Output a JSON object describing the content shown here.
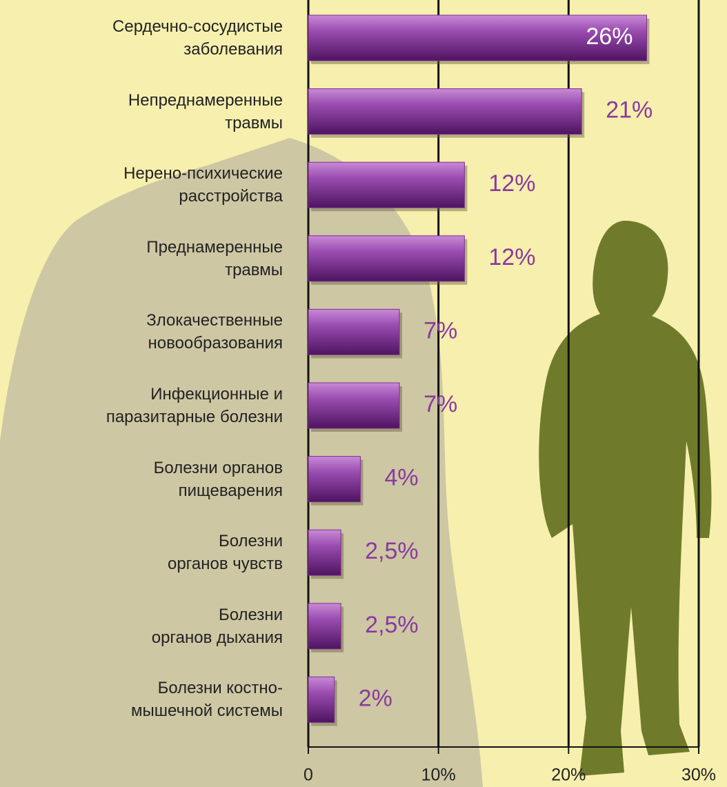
{
  "chart_data": {
    "type": "barh",
    "categories": [
      "Сердечно-сосудистые\nзаболевания",
      "Непреднамеренные\nтравмы",
      "Нерено-психические\nрасстройства",
      "Преднамеренные\nтравмы",
      "Злокачественные\nновообразования",
      "Инфекционные и\nпаразитарные болезни",
      "Болезни органов\nпищеварения",
      "Болезни\nорганов чувств",
      "Болезни\nорганов дыхания",
      "Болезни костно-\nмышечной системы"
    ],
    "values": [
      26,
      21,
      12,
      12,
      7,
      7,
      4,
      2.5,
      2.5,
      2
    ],
    "value_labels": [
      "26%",
      "21%",
      "12%",
      "12%",
      "7%",
      "7%",
      "4%",
      "2,5%",
      "2,5%",
      "2%"
    ],
    "color": "#7b2f90",
    "xlim": [
      0,
      30
    ],
    "xticks": [
      0,
      {
        "value": 10,
        "label": "10%"
      },
      {
        "value": 20,
        "label": "20%"
      },
      {
        "value": 30,
        "label": "30%"
      }
    ],
    "grid": true
  }
}
